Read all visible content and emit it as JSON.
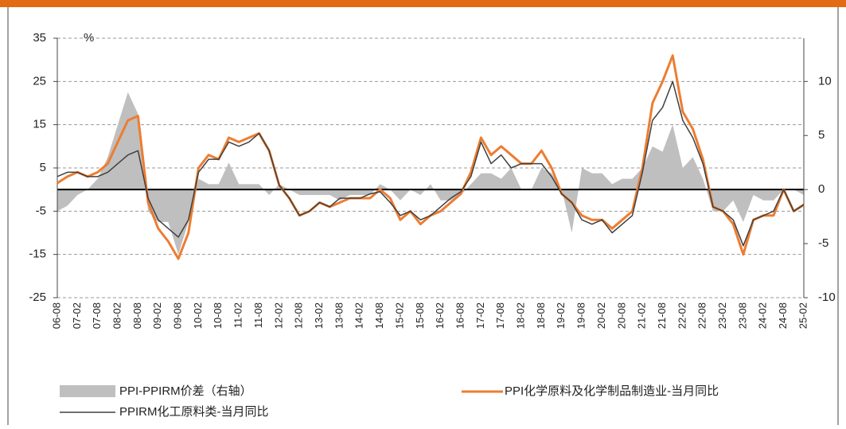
{
  "chart_data": {
    "type": "line",
    "annotations": [
      "%"
    ],
    "categories": [
      "06-08",
      null,
      "07-02",
      null,
      "07-08",
      null,
      "08-02",
      null,
      "08-08",
      null,
      "09-02",
      null,
      "09-08",
      null,
      "10-02",
      null,
      "10-08",
      null,
      "11-02",
      null,
      "11-08",
      null,
      "12-02",
      null,
      "12-08",
      null,
      "13-02",
      null,
      "13-08",
      null,
      "14-02",
      null,
      "14-08",
      null,
      "15-02",
      null,
      "15-08",
      null,
      "16-02",
      null,
      "16-08",
      null,
      "17-02",
      null,
      "17-08",
      null,
      "18-02",
      null,
      "18-08",
      null,
      "19-02",
      null,
      "19-08",
      null,
      "20-02",
      null,
      "20-08",
      null,
      "21-02",
      null,
      "21-08",
      null,
      "22-02",
      null,
      "22-08",
      null,
      "23-02",
      null,
      "23-08",
      null,
      "24-02",
      null,
      "24-08",
      null,
      "25-02"
    ],
    "series": [
      {
        "name": "PPI-PPIRM价差（右轴）",
        "type": "area",
        "axis": "y2",
        "color": "#bfbfbf",
        "values": [
          -2,
          -1.5,
          -0.5,
          0,
          1,
          3,
          6,
          9,
          7,
          -2,
          -3,
          -3,
          -6,
          -3,
          1,
          0.5,
          0.5,
          2.5,
          0.5,
          0.5,
          0.5,
          -0.5,
          0.5,
          0,
          -0.5,
          -0.5,
          -0.5,
          -0.5,
          -1,
          -0.5,
          -0.5,
          -0.5,
          0.5,
          0,
          -1,
          0,
          -0.5,
          0.5,
          -1,
          -1,
          -0.5,
          0.5,
          1.5,
          1.5,
          1,
          2,
          0,
          0,
          2,
          1.5,
          0,
          -4,
          2,
          1.5,
          1.5,
          0.5,
          1,
          1,
          2,
          4,
          3.5,
          6,
          2,
          3,
          1,
          -2,
          -2,
          -1,
          -3,
          -0.5,
          -1,
          -1,
          0,
          0,
          -0.5
        ]
      },
      {
        "name": "PPI化学原料及化学制品制造业-当月同比",
        "type": "line",
        "color": "#ed7d31",
        "values": [
          1.5,
          3,
          4,
          3,
          4,
          6,
          11,
          16,
          17,
          -3,
          -9,
          -12,
          -16,
          -10,
          5,
          8,
          7,
          12,
          11,
          12,
          13,
          9,
          1,
          -2,
          -6,
          -5,
          -3,
          -4,
          -3,
          -2,
          -2,
          -2,
          0,
          -2,
          -7,
          -5,
          -8,
          -6,
          -5,
          -3,
          -1,
          4,
          12,
          8,
          10,
          8,
          6,
          6,
          9,
          5,
          -1,
          -3,
          -6,
          -7,
          -7,
          -9,
          -7,
          -5,
          5,
          20,
          25,
          31,
          18,
          14,
          7,
          -4,
          -5,
          -8,
          -15,
          -7,
          -6,
          -6,
          0,
          -5,
          -3.5
        ]
      },
      {
        "name": "PPIRM化工原料类-当月同比",
        "type": "line",
        "color": "#404040",
        "values": [
          3,
          4,
          4,
          3,
          3,
          4,
          6,
          8,
          9,
          -2,
          -7,
          -9,
          -11,
          -7,
          4,
          7,
          7,
          11,
          10,
          11,
          13,
          9,
          1,
          -2,
          -6,
          -5,
          -3,
          -4,
          -2,
          -2,
          -2,
          -1,
          -0.5,
          -3,
          -6,
          -5,
          -7,
          -6,
          -4,
          -2,
          -0.5,
          3,
          11,
          6,
          8,
          5,
          6,
          6,
          6,
          3,
          -1,
          -3,
          -7,
          -8,
          -7,
          -10,
          -8,
          -6,
          4,
          16,
          19,
          25,
          16,
          12,
          6,
          -4,
          -5,
          -7,
          -13,
          -7,
          -6,
          -5,
          0,
          -5,
          -3.5
        ]
      }
    ],
    "ylim": [
      -25,
      35
    ],
    "yticks": [
      -25,
      -15,
      -5,
      5,
      15,
      25,
      35
    ],
    "y2lim": [
      -10,
      14
    ],
    "y2ticks": [
      -10,
      -5,
      0,
      5,
      10
    ],
    "grid": true
  }
}
